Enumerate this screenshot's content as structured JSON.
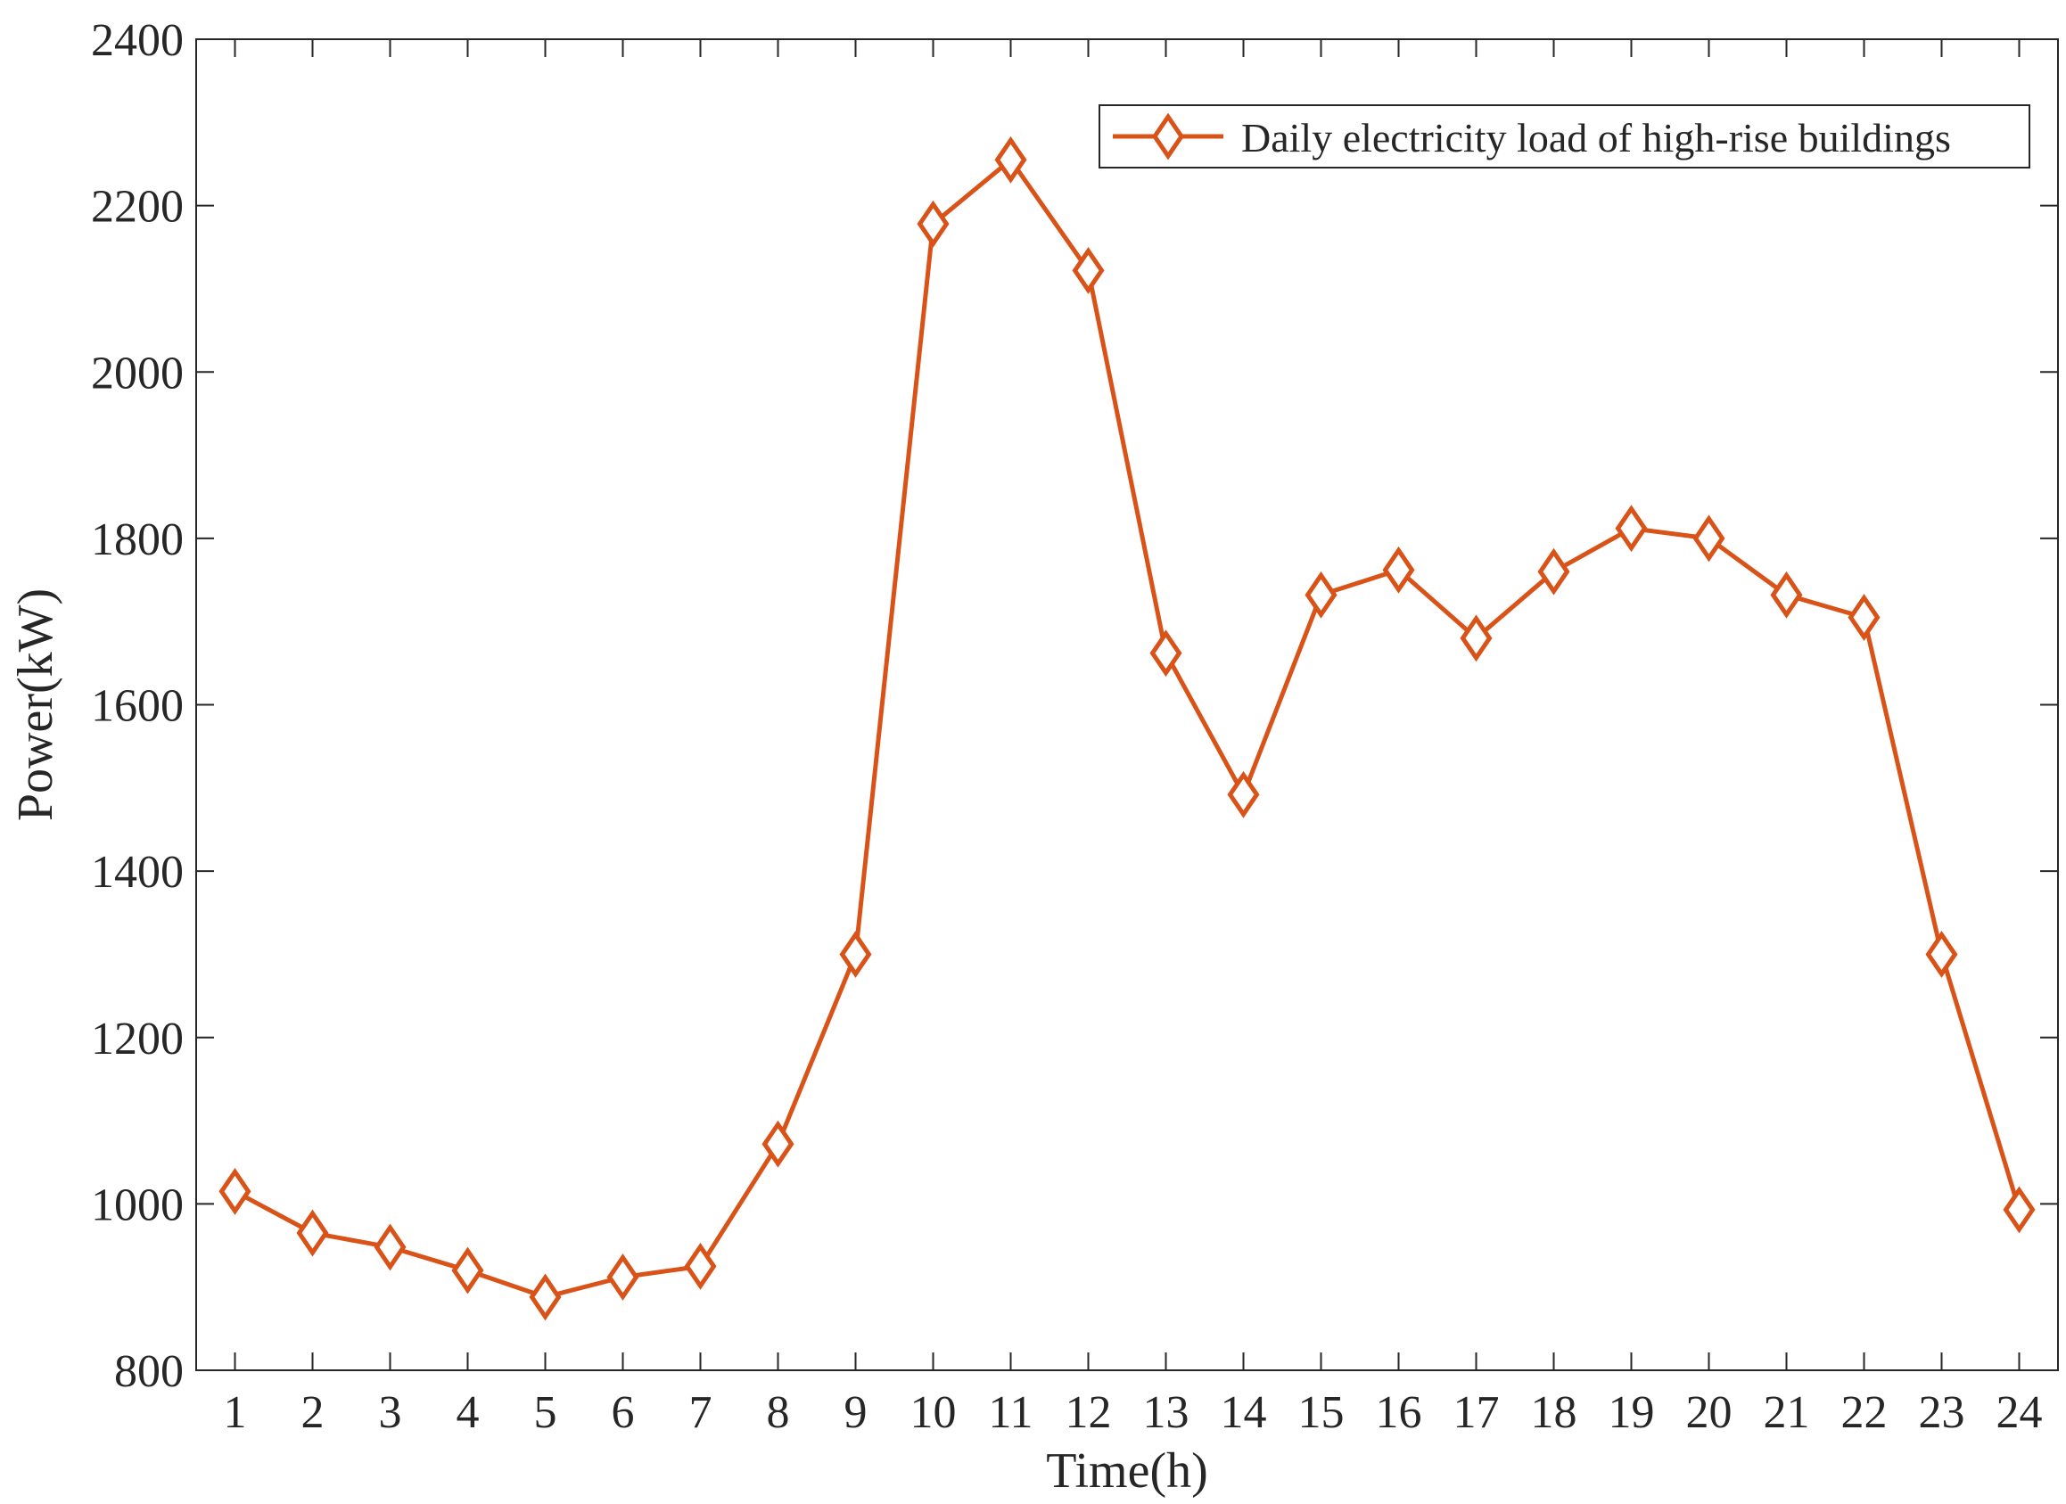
{
  "chart_data": {
    "type": "line",
    "title": "",
    "xlabel": "Time(h)",
    "ylabel": "Power(kW)",
    "x": [
      1,
      2,
      3,
      4,
      5,
      6,
      7,
      8,
      9,
      10,
      11,
      12,
      13,
      14,
      15,
      16,
      17,
      18,
      19,
      20,
      21,
      22,
      23,
      24
    ],
    "xlim": [
      0.5,
      24.5
    ],
    "ylim": [
      800,
      2400
    ],
    "xticks": [
      1,
      2,
      3,
      4,
      5,
      6,
      7,
      8,
      9,
      10,
      11,
      12,
      13,
      14,
      15,
      16,
      17,
      18,
      19,
      20,
      21,
      22,
      23,
      24
    ],
    "yticks": [
      800,
      1000,
      1200,
      1400,
      1600,
      1800,
      2000,
      2200,
      2400
    ],
    "grid": false,
    "legend_position": "top-right",
    "series": [
      {
        "name": "Daily electricity load of high-rise buildings",
        "color": "#D95319",
        "marker": "diamond",
        "values": [
          1015,
          965,
          948,
          920,
          888,
          912,
          925,
          1072,
          1300,
          2178,
          2255,
          2122,
          1662,
          1492,
          1732,
          1762,
          1680,
          1760,
          1812,
          1800,
          1732,
          1705,
          1300,
          993
        ]
      }
    ]
  }
}
